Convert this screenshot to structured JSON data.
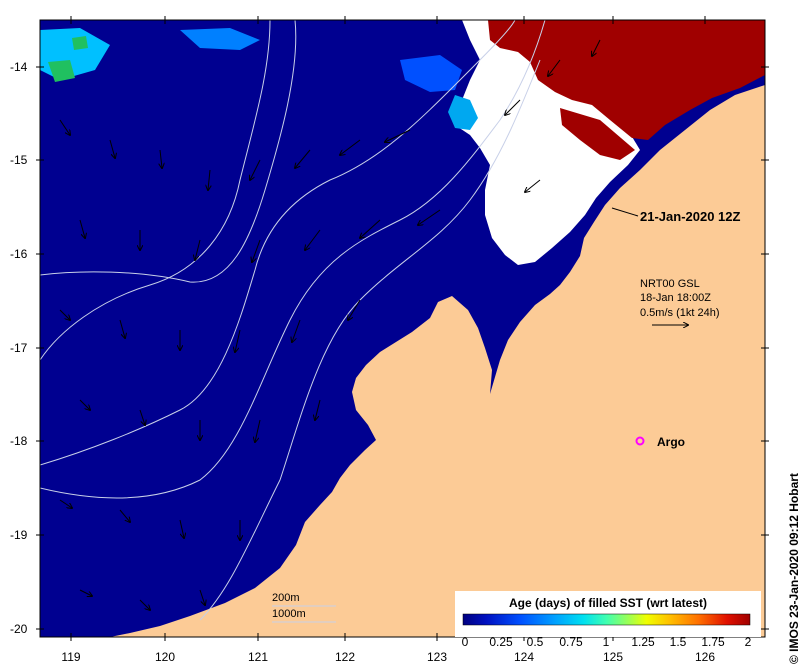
{
  "map": {
    "lat_labels": [
      "-14",
      "-15",
      "-16",
      "-17",
      "-18",
      "-19",
      "-20"
    ],
    "lon_labels": [
      "119",
      "120",
      "121",
      "122",
      "123",
      "124",
      "125",
      "126"
    ],
    "timestamp_label": "21-Jan-2020 12Z",
    "current_info": {
      "line1": "NRT00 GSL",
      "line2": "18-Jan 18:00Z",
      "line3": "0.5m/s (1kt 24h)"
    },
    "argo_label": "Argo",
    "contour_legend": {
      "line1": "200m",
      "line2": "1000m"
    },
    "colorbar": {
      "title": "Age (days) of filled SST (wrt latest)",
      "ticks": [
        "0",
        "0.25",
        "0.5",
        "0.75",
        "1",
        "1.25",
        "1.5",
        "1.75",
        "2"
      ],
      "colors": [
        "#000080",
        "#0010c0",
        "#0040ff",
        "#0090ff",
        "#00d0ff",
        "#20ffd0",
        "#60ff90",
        "#a0ff50",
        "#e0ff10",
        "#ffd000",
        "#ff9000",
        "#ff5000",
        "#e01000",
        "#a00000"
      ]
    },
    "credit": "© IMOS 23-Jan-2020 09:12 Hobart"
  }
}
